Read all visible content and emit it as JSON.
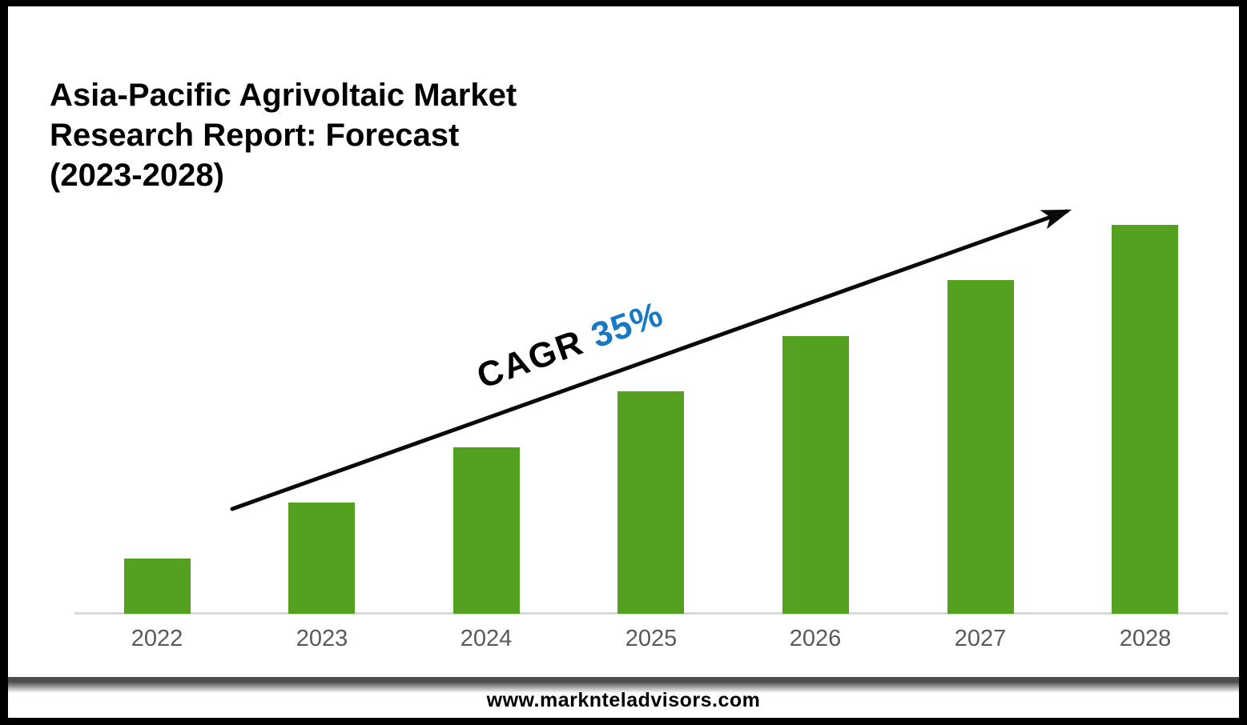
{
  "title": {
    "lines": [
      "Asia-Pacific Agrivoltaic Market",
      "Research Report: Forecast",
      "(2023-2028)"
    ]
  },
  "annotation": {
    "label": "CAGR",
    "value": "35%"
  },
  "footer": {
    "url": "www.marknteladvisors.com"
  },
  "colors": {
    "bar_green": "#54A121",
    "cagr_blue": "#1778C5",
    "axis_line": "#D9D9D9",
    "year_label": "#595959",
    "arrow": "#0A0A0A"
  },
  "chart_data": {
    "type": "bar",
    "title": "Asia-Pacific Agrivoltaic Market Research Report: Forecast (2023-2028)",
    "categories": [
      "2022",
      "2023",
      "2024",
      "2025",
      "2026",
      "2027",
      "2028"
    ],
    "values": [
      1,
      2,
      3,
      4,
      5,
      6,
      7
    ],
    "value_axis_visible": false,
    "xlabel": "",
    "ylabel": "",
    "ylim": [
      0,
      7.8
    ],
    "annotation": "CAGR 35%",
    "trend_arrow": true,
    "grid": false,
    "legend": false,
    "bar_color": "#54A121"
  }
}
